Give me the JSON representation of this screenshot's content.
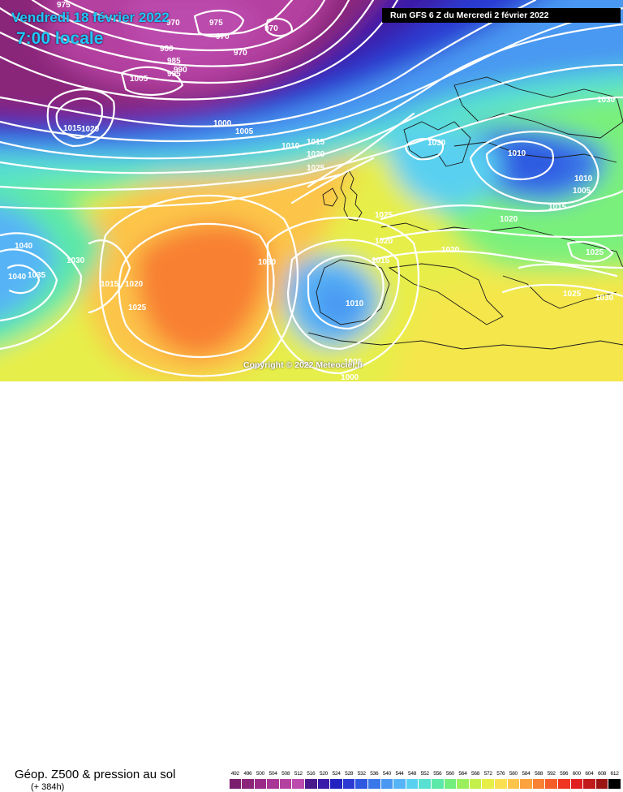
{
  "title": {
    "date": "Vendredi 18 février 2022",
    "time": "7:00 locale"
  },
  "run_info": "Run GFS 6 Z du Mercredi 2 février 2022",
  "copyright": "Copyright © 2022 Meteociel.fr",
  "product": "Géop. Z500 & pression au sol",
  "lead_time": "(+ 384h)",
  "legend_scale": [
    {
      "value": "492",
      "color": "#7a1f6e"
    },
    {
      "value": "496",
      "color": "#8a257a"
    },
    {
      "value": "500",
      "color": "#9a2c88"
    },
    {
      "value": "504",
      "color": "#a83694"
    },
    {
      "value": "508",
      "color": "#b440a0"
    },
    {
      "value": "512",
      "color": "#bb4cad"
    },
    {
      "value": "516",
      "color": "#4a1a8c"
    },
    {
      "value": "520",
      "color": "#3a1aa8"
    },
    {
      "value": "524",
      "color": "#2222c0"
    },
    {
      "value": "528",
      "color": "#2a3ad2"
    },
    {
      "value": "532",
      "color": "#2e58e0"
    },
    {
      "value": "536",
      "color": "#3a78ea"
    },
    {
      "value": "540",
      "color": "#4a98f2"
    },
    {
      "value": "544",
      "color": "#56b4f6"
    },
    {
      "value": "548",
      "color": "#5ad0f0"
    },
    {
      "value": "552",
      "color": "#58e0d0"
    },
    {
      "value": "556",
      "color": "#5ce8a8"
    },
    {
      "value": "560",
      "color": "#72ee7c"
    },
    {
      "value": "564",
      "color": "#9af05c"
    },
    {
      "value": "568",
      "color": "#c4f04c"
    },
    {
      "value": "572",
      "color": "#e8ee48"
    },
    {
      "value": "576",
      "color": "#fae050"
    },
    {
      "value": "580",
      "color": "#fcc44a"
    },
    {
      "value": "584",
      "color": "#fca23e"
    },
    {
      "value": "588",
      "color": "#f88032"
    },
    {
      "value": "592",
      "color": "#f45c28"
    },
    {
      "value": "596",
      "color": "#ee3622"
    },
    {
      "value": "600",
      "color": "#e0201e"
    },
    {
      "value": "604",
      "color": "#c01a1a"
    },
    {
      "value": "608",
      "color": "#9a1414"
    },
    {
      "value": "612",
      "color": "#000000"
    }
  ],
  "isobar_labels": [
    {
      "id": "l975a",
      "text": "975"
    },
    {
      "id": "l970a",
      "text": "970"
    },
    {
      "id": "l975b",
      "text": "975"
    },
    {
      "id": "l970b",
      "text": "970"
    },
    {
      "id": "l970c",
      "text": "970"
    },
    {
      "id": "l980",
      "text": "980"
    },
    {
      "id": "l985",
      "text": "985"
    },
    {
      "id": "l990",
      "text": "990"
    },
    {
      "id": "l995",
      "text": "995"
    },
    {
      "id": "l970d",
      "text": "970"
    },
    {
      "id": "l1005a",
      "text": "1005"
    },
    {
      "id": "l1015a",
      "text": "1015"
    },
    {
      "id": "l1020a",
      "text": "1020"
    },
    {
      "id": "l1000a",
      "text": "1000"
    },
    {
      "id": "l1005b",
      "text": "1005"
    },
    {
      "id": "l1010a",
      "text": "1010"
    },
    {
      "id": "l1015b",
      "text": "1015"
    },
    {
      "id": "l1020b",
      "text": "1020"
    },
    {
      "id": "l1025a",
      "text": "1025"
    },
    {
      "id": "l1030a",
      "text": "1030"
    },
    {
      "id": "l1030b",
      "text": "1030"
    },
    {
      "id": "l1010b",
      "text": "1010"
    },
    {
      "id": "l1010c",
      "text": "1010"
    },
    {
      "id": "l1005c",
      "text": "1005"
    },
    {
      "id": "l1015c",
      "text": "1015"
    },
    {
      "id": "l1020c",
      "text": "1020"
    },
    {
      "id": "l1025b",
      "text": "1025"
    },
    {
      "id": "l1020d",
      "text": "1020"
    },
    {
      "id": "l1020e",
      "text": "1020"
    },
    {
      "id": "l1015d",
      "text": "1015"
    },
    {
      "id": "l1025c",
      "text": "1025"
    },
    {
      "id": "l1040a",
      "text": "1040"
    },
    {
      "id": "l1030c",
      "text": "1030"
    },
    {
      "id": "l1040b",
      "text": "1040"
    },
    {
      "id": "l1035",
      "text": "1035"
    },
    {
      "id": "l1015e",
      "text": "1015"
    },
    {
      "id": "l1020f",
      "text": "1020"
    },
    {
      "id": "l1025d",
      "text": "1025"
    },
    {
      "id": "l1030d",
      "text": "1030"
    },
    {
      "id": "l1010d",
      "text": "1010"
    },
    {
      "id": "l1025e",
      "text": "1025"
    },
    {
      "id": "l1030e",
      "text": "1030"
    },
    {
      "id": "l1000b",
      "text": "1000"
    },
    {
      "id": "l1005d",
      "text": "1005"
    }
  ]
}
